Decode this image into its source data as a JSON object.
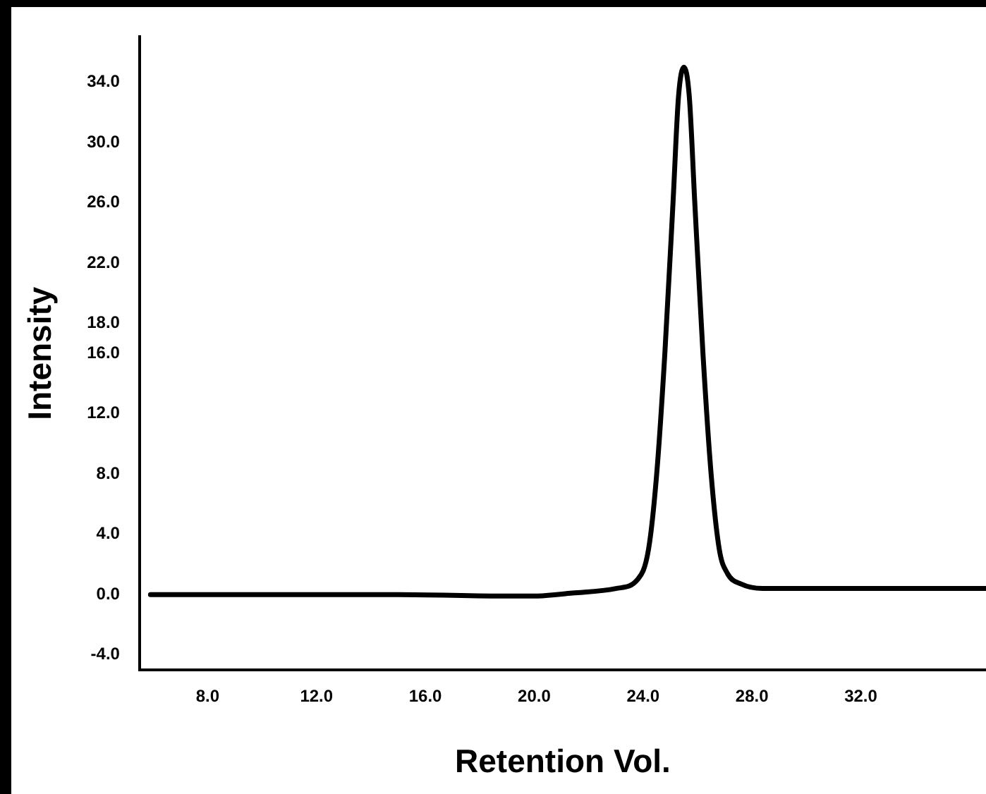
{
  "chart_data": {
    "type": "line",
    "xlabel": "Retention Vol.",
    "ylabel": "Intensity",
    "x": [
      5.9,
      10,
      15,
      19,
      20,
      21.4,
      23,
      23.8,
      24.2,
      24.5,
      24.8,
      25.1,
      25.3,
      25.5,
      25.7,
      25.9,
      26.2,
      26.5,
      26.8,
      27.1,
      27.6,
      28.4,
      32,
      36.6
    ],
    "series": [
      {
        "color": "#000000",
        "values": [
          0,
          0,
          0,
          -0.1,
          -0.1,
          0.1,
          0.4,
          1,
          3,
          8,
          16,
          26,
          33,
          35,
          33,
          26,
          16,
          8,
          3,
          1.4,
          0.7,
          0.4,
          0.4,
          0.4
        ]
      }
    ],
    "xlim": [
      5.5,
      36.6
    ],
    "xticks": [
      {
        "value": 8,
        "label": "8.0"
      },
      {
        "value": 12,
        "label": "12.0"
      },
      {
        "value": 16,
        "label": "16.0"
      },
      {
        "value": 20,
        "label": "20.0"
      },
      {
        "value": 24,
        "label": "24.0"
      },
      {
        "value": 28,
        "label": "28.0"
      },
      {
        "value": 32,
        "label": "32.0"
      }
    ],
    "ylim": [
      -5,
      37
    ],
    "yticks": [
      {
        "value": -4,
        "label": "-4.0"
      },
      {
        "value": 0,
        "label": "0.0"
      },
      {
        "value": 4,
        "label": "4.0"
      },
      {
        "value": 8,
        "label": "8.0"
      },
      {
        "value": 12,
        "label": "12.0"
      },
      {
        "value": 16,
        "label": "16.0"
      },
      {
        "value": 18,
        "label": "18.0"
      },
      {
        "value": 22,
        "label": "22.0"
      },
      {
        "value": 26,
        "label": "26.0"
      },
      {
        "value": 30,
        "label": "30.0"
      },
      {
        "value": 34,
        "label": "34.0"
      }
    ],
    "grid": false,
    "legend": false,
    "marker": "none",
    "line_style": "solid"
  }
}
